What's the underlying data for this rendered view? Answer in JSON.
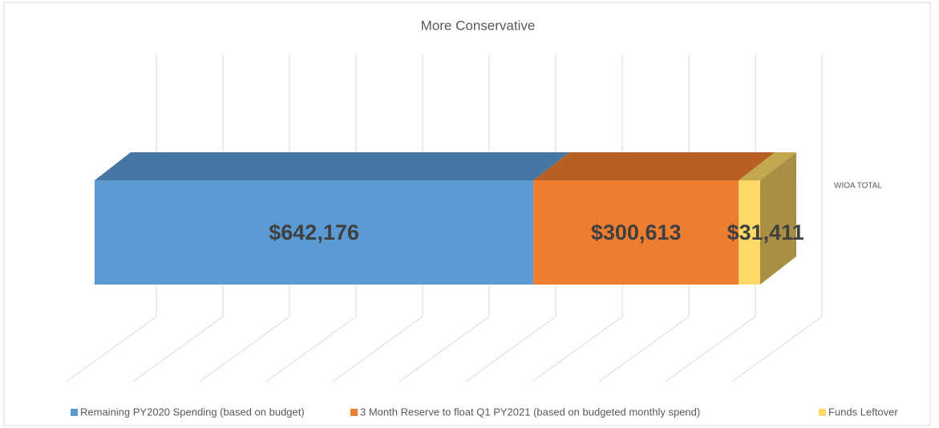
{
  "chart_data": {
    "type": "bar",
    "orientation": "horizontal",
    "stacked": true,
    "three_d": true,
    "title": "More Conservative",
    "categories": [
      "WIOA TOTAL"
    ],
    "series": [
      {
        "name": "Remaining PY2020 Spending (based on budget)",
        "color": "#5b9bd5",
        "values": [
          642176
        ],
        "value_labels": [
          "$642,176"
        ]
      },
      {
        "name": "3 Month Reserve to float Q1 PY2021 (based on budgeted monthly spend)",
        "color": "#ed7d31",
        "values": [
          300613
        ],
        "value_labels": [
          "$300,613"
        ]
      },
      {
        "name": "Funds Leftover",
        "color": "#ffd966",
        "values": [
          31411
        ],
        "value_labels": [
          "$31,411"
        ]
      }
    ],
    "xlim": [
      0,
      1000000
    ],
    "xticks": [
      0,
      100000,
      200000,
      300000,
      400000,
      500000,
      600000,
      700000,
      800000,
      900000,
      1000000
    ],
    "grid": true,
    "legend": "bottom"
  }
}
